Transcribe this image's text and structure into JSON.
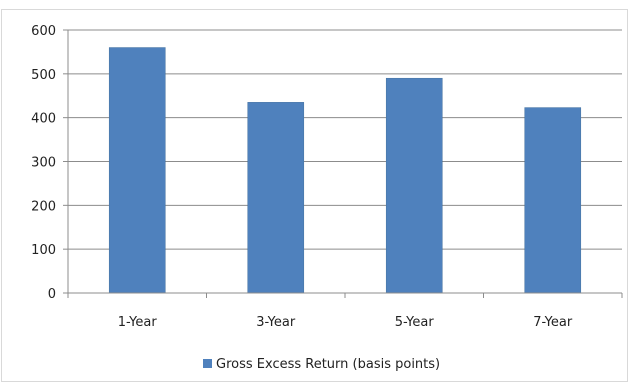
{
  "chart_data": {
    "type": "bar",
    "categories": [
      "1-Year",
      "3-Year",
      "5-Year",
      "7-Year"
    ],
    "series": [
      {
        "name": "Gross Excess Return (basis points)",
        "values": [
          560,
          435,
          490,
          423
        ]
      }
    ],
    "ylim": [
      0,
      600
    ],
    "yticks": [
      0,
      100,
      200,
      300,
      400,
      500,
      600
    ],
    "grid": true,
    "legend": "bottom",
    "colors": {
      "bar": "#4f81bd",
      "bar_edge": "#43719f",
      "grid": "#8c8c8c",
      "axis": "#8c8c8c"
    }
  }
}
